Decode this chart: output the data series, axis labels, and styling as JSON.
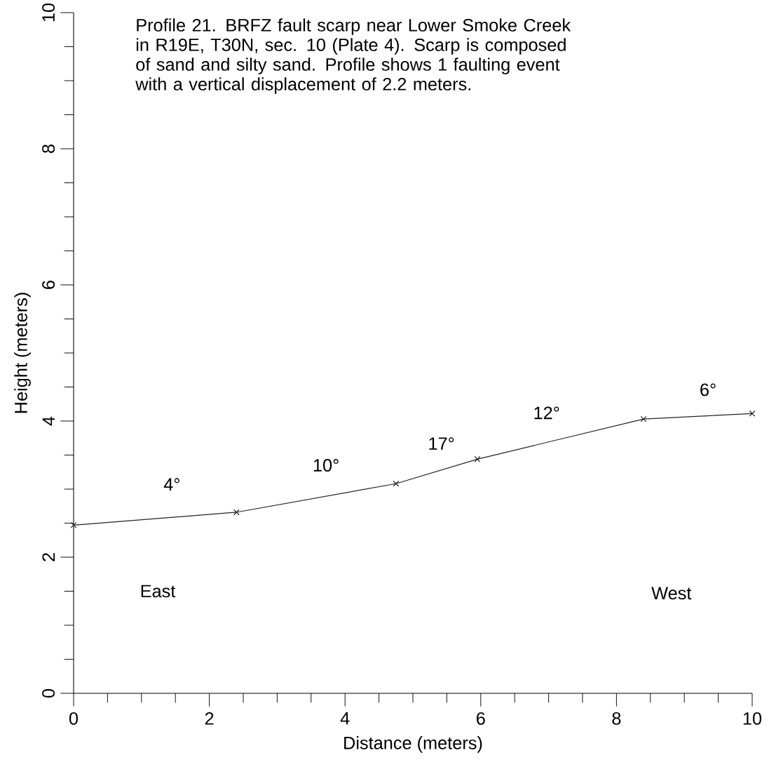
{
  "chart_data": {
    "type": "line",
    "title": "Profile 21. BRFZ fault scarp near Lower Smoke Creek in R19E, T30N, sec. 10 (Plate 4). Scarp is composed of sand and silty sand. Profile shows 1 faulting event with a vertical displacement of 2.2 meters.",
    "xlabel": "Distance (meters)",
    "ylabel": "Height (meters)",
    "x": [
      0,
      2.4,
      4.75,
      5.95,
      8.4,
      10
    ],
    "values": [
      2.47,
      2.66,
      3.08,
      3.44,
      4.03,
      4.11
    ],
    "color": "#222222",
    "marker": "cross",
    "line_style": "solid",
    "xlim": [
      0,
      10
    ],
    "ylim": [
      0,
      10
    ],
    "xticks": [
      0,
      2,
      4,
      6,
      8,
      10
    ],
    "yticks": [
      0,
      2,
      4,
      6,
      8,
      10
    ],
    "annotations": [
      "4°",
      "10°",
      "17°",
      "12°",
      "6°",
      "East",
      "West"
    ]
  }
}
